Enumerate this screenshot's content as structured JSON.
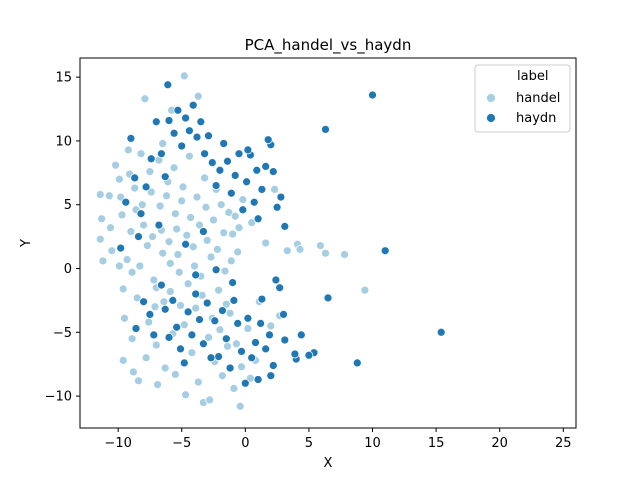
{
  "chart_data": {
    "type": "scatter",
    "title": "PCA_handel_vs_haydn",
    "xlabel": "X",
    "ylabel": "Y",
    "xlim": [
      -13,
      26
    ],
    "ylim": [
      -12.5,
      16.5
    ],
    "xticks": [
      -10,
      -5,
      0,
      5,
      10,
      15,
      20,
      25
    ],
    "yticks": [
      -10,
      -5,
      0,
      5,
      10,
      15
    ],
    "grid": false,
    "legend": {
      "title": "label",
      "placement": "top-right"
    },
    "series": [
      {
        "name": "handel",
        "color": "#a6cee3",
        "points": [
          [
            -11.4,
            5.8
          ],
          [
            -11.3,
            3.9
          ],
          [
            -11.4,
            2.3
          ],
          [
            -11.2,
            0.6
          ],
          [
            -10.7,
            5.7
          ],
          [
            -10.6,
            3.2
          ],
          [
            -10.5,
            1.4
          ],
          [
            -10.2,
            8.1
          ],
          [
            -9.9,
            7.0
          ],
          [
            -9.8,
            5.6
          ],
          [
            -9.7,
            4.2
          ],
          [
            -9.6,
            -1.6
          ],
          [
            -9.6,
            -7.2
          ],
          [
            -9.5,
            -3.9
          ],
          [
            -9.3,
            0.7
          ],
          [
            -9.2,
            9.3
          ],
          [
            -9.1,
            7.4
          ],
          [
            -9.0,
            2.9
          ],
          [
            -8.9,
            -0.3
          ],
          [
            -8.9,
            -5.5
          ],
          [
            -8.8,
            -8.1
          ],
          [
            -8.7,
            6.3
          ],
          [
            -8.6,
            4.6
          ],
          [
            -8.5,
            -2.3
          ],
          [
            -8.4,
            -8.8
          ],
          [
            -8.3,
            0.2
          ],
          [
            -8.2,
            9.0
          ],
          [
            -8.1,
            5.0
          ],
          [
            -8.0,
            3.4
          ],
          [
            -7.9,
            13.3
          ],
          [
            -7.8,
            -7.0
          ],
          [
            -7.7,
            1.8
          ],
          [
            -7.6,
            -4.2
          ],
          [
            -7.5,
            7.6
          ],
          [
            -7.4,
            6.0
          ],
          [
            -7.3,
            2.5
          ],
          [
            -7.2,
            -0.9
          ],
          [
            -7.1,
            -3.0
          ],
          [
            -7.0,
            -6.0
          ],
          [
            -6.9,
            -9.1
          ],
          [
            -6.8,
            8.5
          ],
          [
            -6.7,
            4.9
          ],
          [
            -6.6,
            3.0
          ],
          [
            -6.5,
            1.2
          ],
          [
            -6.4,
            -2.6
          ],
          [
            -6.3,
            -7.8
          ],
          [
            -6.2,
            5.7
          ],
          [
            -6.1,
            6.8
          ],
          [
            -6.0,
            2.1
          ],
          [
            -5.9,
            0.4
          ],
          [
            -5.9,
            -1.8
          ],
          [
            -5.8,
            12.4
          ],
          [
            -5.7,
            -5.1
          ],
          [
            -5.6,
            7.9
          ],
          [
            -5.5,
            4.3
          ],
          [
            -5.5,
            -8.3
          ],
          [
            -5.4,
            3.1
          ],
          [
            -5.3,
            1.1
          ],
          [
            -5.2,
            -0.3
          ],
          [
            -5.1,
            -2.9
          ],
          [
            -5.0,
            5.3
          ],
          [
            -4.9,
            6.4
          ],
          [
            -4.8,
            15.1
          ],
          [
            -4.8,
            -4.4
          ],
          [
            -4.7,
            -9.9
          ],
          [
            -4.6,
            2.6
          ],
          [
            -4.5,
            -1.2
          ],
          [
            -4.4,
            8.8
          ],
          [
            -4.3,
            4.0
          ],
          [
            -4.2,
            -6.6
          ],
          [
            -4.1,
            1.7
          ],
          [
            -4.0,
            0.2
          ],
          [
            -3.9,
            -3.1
          ],
          [
            -3.8,
            5.6
          ],
          [
            -3.7,
            -8.9
          ],
          [
            -3.6,
            3.4
          ],
          [
            -3.5,
            -0.6
          ],
          [
            -3.4,
            -2.1
          ],
          [
            -3.3,
            -10.5
          ],
          [
            -3.2,
            7.1
          ],
          [
            -3.1,
            4.8
          ],
          [
            -3.0,
            2.2
          ],
          [
            -2.9,
            -5.4
          ],
          [
            -2.8,
            -10.3
          ],
          [
            -2.7,
            0.9
          ],
          [
            -2.6,
            -3.9
          ],
          [
            -2.5,
            3.8
          ],
          [
            -2.4,
            -7.3
          ],
          [
            -2.3,
            6.2
          ],
          [
            -2.2,
            1.5
          ],
          [
            -2.1,
            -1.7
          ],
          [
            -2.0,
            -4.8
          ],
          [
            -1.9,
            5.0
          ],
          [
            -1.8,
            -8.4
          ],
          [
            -1.7,
            2.8
          ],
          [
            -1.6,
            -0.2
          ],
          [
            -1.5,
            -2.8
          ],
          [
            -1.4,
            -6.1
          ],
          [
            -1.3,
            4.4
          ],
          [
            -1.2,
            -3.5
          ],
          [
            -1.1,
            0.6
          ],
          [
            -1.0,
            2.7
          ],
          [
            -0.9,
            -9.4
          ],
          [
            -0.8,
            4.1
          ],
          [
            -0.7,
            -5.9
          ],
          [
            -0.6,
            1.3
          ],
          [
            -0.5,
            3.2
          ],
          [
            -0.4,
            -10.8
          ],
          [
            -0.3,
            -7.7
          ],
          [
            -0.2,
            5.4
          ],
          [
            0.2,
            -4.7
          ],
          [
            0.4,
            -8.6
          ],
          [
            0.5,
            3.6
          ],
          [
            0.8,
            -7.2
          ],
          [
            1.1,
            -2.6
          ],
          [
            1.6,
            2.0
          ],
          [
            2.0,
            -4.5
          ],
          [
            2.3,
            6.2
          ],
          [
            2.7,
            -3.7
          ],
          [
            3.3,
            1.4
          ],
          [
            4.1,
            1.9
          ],
          [
            4.3,
            1.5
          ],
          [
            5.9,
            1.8
          ],
          [
            6.3,
            1.2
          ],
          [
            7.8,
            1.1
          ],
          [
            9.4,
            -1.7
          ],
          [
            -6.5,
            9.8
          ],
          [
            -3.7,
            13.5
          ],
          [
            -9.9,
            0.2
          ],
          [
            -7.0,
            -1.5
          ]
        ]
      },
      {
        "name": "haydn",
        "color": "#1f78b4",
        "points": [
          [
            10.0,
            13.6
          ],
          [
            6.3,
            10.9
          ],
          [
            15.4,
            -5.0
          ],
          [
            11.0,
            1.4
          ],
          [
            6.5,
            -2.3
          ],
          [
            8.8,
            -7.4
          ],
          [
            5.4,
            -6.6
          ],
          [
            5.0,
            -6.8
          ],
          [
            4.0,
            -7.1
          ],
          [
            4.4,
            -5.2
          ],
          [
            3.9,
            -6.7
          ],
          [
            3.1,
            -5.6
          ],
          [
            3.0,
            -3.6
          ],
          [
            2.7,
            -1.5
          ],
          [
            2.4,
            -0.9
          ],
          [
            2.2,
            -7.6
          ],
          [
            2.0,
            -8.4
          ],
          [
            1.9,
            -5.2
          ],
          [
            1.6,
            -6.3
          ],
          [
            1.3,
            -2.4
          ],
          [
            1.0,
            -8.7
          ],
          [
            0.8,
            -5.8
          ],
          [
            0.5,
            -7.0
          ],
          [
            0.2,
            -3.9
          ],
          [
            0.0,
            -9.0
          ],
          [
            -0.3,
            -6.5
          ],
          [
            -0.6,
            -4.3
          ],
          [
            -0.9,
            -2.5
          ],
          [
            -1.2,
            -7.8
          ],
          [
            -1.5,
            -5.5
          ],
          [
            -1.8,
            -3.3
          ],
          [
            -2.1,
            -6.9
          ],
          [
            -2.4,
            -4.1
          ],
          [
            -2.7,
            -7.0
          ],
          [
            -3.0,
            -2.7
          ],
          [
            -3.3,
            -5.9
          ],
          [
            -3.6,
            -4.0
          ],
          [
            -3.9,
            -2.0
          ],
          [
            -4.2,
            -5.2
          ],
          [
            -4.5,
            -3.4
          ],
          [
            -4.8,
            -7.4
          ],
          [
            -5.1,
            -6.3
          ],
          [
            -5.4,
            -4.6
          ],
          [
            -5.7,
            -2.5
          ],
          [
            -6.0,
            -5.4
          ],
          [
            -6.3,
            -3.2
          ],
          [
            -6.6,
            -1.3
          ],
          [
            -7.2,
            -5.2
          ],
          [
            -7.5,
            -3.6
          ],
          [
            -8.0,
            -2.6
          ],
          [
            -8.6,
            -4.7
          ],
          [
            2.8,
            5.6
          ],
          [
            2.5,
            4.8
          ],
          [
            2.2,
            7.6
          ],
          [
            2.0,
            9.7
          ],
          [
            1.6,
            8.0
          ],
          [
            1.3,
            6.2
          ],
          [
            1.0,
            3.9
          ],
          [
            0.7,
            5.2
          ],
          [
            0.4,
            8.9
          ],
          [
            0.1,
            6.8
          ],
          [
            -0.2,
            4.6
          ],
          [
            -0.5,
            9.0
          ],
          [
            -0.8,
            7.3
          ],
          [
            -1.1,
            5.9
          ],
          [
            -1.4,
            8.4
          ],
          [
            -1.7,
            9.8
          ],
          [
            -2.0,
            7.7
          ],
          [
            -2.3,
            6.5
          ],
          [
            -2.6,
            8.3
          ],
          [
            -2.9,
            10.4
          ],
          [
            -3.2,
            9.0
          ],
          [
            -3.5,
            11.5
          ],
          [
            -3.8,
            10.3
          ],
          [
            -4.1,
            12.8
          ],
          [
            -4.4,
            10.8
          ],
          [
            -4.7,
            11.8
          ],
          [
            -5.0,
            9.6
          ],
          [
            -5.3,
            12.4
          ],
          [
            -5.6,
            10.6
          ],
          [
            -6.0,
            11.6
          ],
          [
            -6.3,
            7.2
          ],
          [
            -6.6,
            9.0
          ],
          [
            -7.0,
            11.5
          ],
          [
            -7.4,
            8.6
          ],
          [
            -7.8,
            6.4
          ],
          [
            -8.2,
            4.3
          ],
          [
            -8.7,
            7.1
          ],
          [
            -9.0,
            10.2
          ],
          [
            -9.4,
            5.2
          ],
          [
            -9.8,
            1.6
          ],
          [
            -8.4,
            2.5
          ],
          [
            -6.8,
            3.4
          ],
          [
            -6.1,
            14.4
          ],
          [
            -3.3,
            2.9
          ],
          [
            -4.7,
            1.9
          ],
          [
            0.2,
            9.3
          ],
          [
            1.8,
            10.1
          ],
          [
            3.1,
            3.3
          ],
          [
            0.9,
            7.7
          ],
          [
            -2.3,
            -0.1
          ],
          [
            -1.0,
            -1.1
          ],
          [
            -3.9,
            -0.5
          ],
          [
            1.2,
            -4.3
          ]
        ]
      }
    ]
  }
}
